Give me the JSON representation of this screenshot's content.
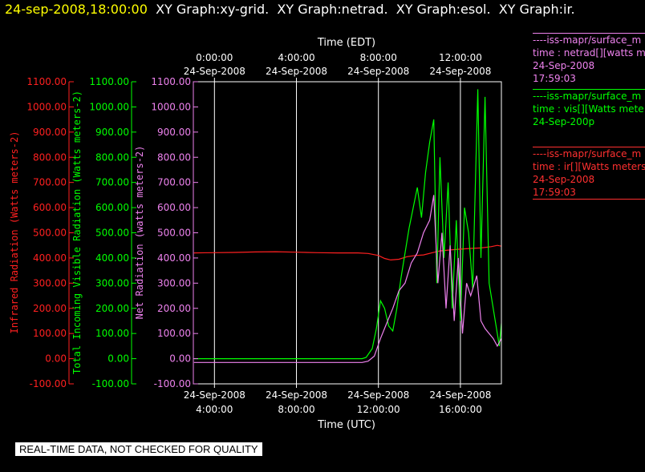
{
  "header": {
    "datetime": "24-sep-2008,18:00:00",
    "graphs": [
      "XY Graph:xy-grid.",
      "XY Graph:netrad.",
      "XY Graph:esol.",
      "XY Graph:ir."
    ]
  },
  "legend": [
    {
      "name": "----iss-mapr/surface_m",
      "line2": "time : netrad[][watts m",
      "line3": "24-Sep-2008",
      "line4": "17:59:03",
      "color": "#ee82ee"
    },
    {
      "name": "----iss-mapr/surface_m",
      "line2": "time : vis[][Watts mete",
      "line3": "24-Sep-200p",
      "line4": "",
      "color": "#00ff00"
    },
    {
      "name": "----iss-mapr/surface_m",
      "line2": "time : ir[][Watts meters",
      "line3": "24-Sep-2008",
      "line4": "17:59:03",
      "color": "#ff3030"
    }
  ],
  "footer": {
    "note": "REAL-TIME DATA, NOT CHECKED FOR QUALITY"
  },
  "chart_data": {
    "type": "line",
    "title": "",
    "top_axis": {
      "label": "Time (EDT)",
      "ticks": [
        {
          "t": 0,
          "line1": "0:00:00",
          "line2": "24-Sep-2008"
        },
        {
          "t": 4,
          "line1": "4:00:00",
          "line2": "24-Sep-2008"
        },
        {
          "t": 8,
          "line1": "8:00:00",
          "line2": "24-Sep-2008"
        },
        {
          "t": 12,
          "line1": "12:00:00",
          "line2": "24-Sep-2008"
        }
      ]
    },
    "bottom_axis": {
      "label": "Time (UTC)",
      "ticks": [
        {
          "t": 4,
          "line1": "24-Sep-2008",
          "line2": "4:00:00"
        },
        {
          "t": 8,
          "line1": "24-Sep-2008",
          "line2": "8:00:00"
        },
        {
          "t": 12,
          "line1": "24-Sep-2008",
          "line2": "12:00:00"
        },
        {
          "t": 16,
          "line1": "24-Sep-2008",
          "line2": "16:00:00"
        }
      ]
    },
    "xlim_utc_hours": [
      2.97,
      18.0
    ],
    "ylim": [
      -100,
      1100
    ],
    "y_ticks": [
      -100,
      0,
      100,
      200,
      300,
      400,
      500,
      600,
      700,
      800,
      900,
      1000,
      1100
    ],
    "y_tick_labels": [
      "-100.00",
      "0.00",
      "100.00",
      "200.00",
      "300.00",
      "400.00",
      "500.00",
      "600.00",
      "700.00",
      "800.00",
      "900.00",
      "1000.00",
      "1100.00"
    ],
    "y_axes": [
      {
        "label": "Infrared Radiation (Watts meters-2)",
        "color": "#ff2020"
      },
      {
        "label": "Total Incoming Visible Radiation (Watts meters-2)",
        "color": "#00ff00"
      },
      {
        "label": "Net Radiation (watts meters-2)",
        "color": "#ee82ee"
      }
    ],
    "grid": {
      "x": [
        4,
        8,
        12,
        16
      ],
      "color": "#ffffff"
    },
    "series": [
      {
        "name": "time : ir[][Watts meters",
        "color": "#ff2020",
        "points": [
          [
            3.0,
            420
          ],
          [
            4.0,
            421
          ],
          [
            5.0,
            422
          ],
          [
            6.0,
            424
          ],
          [
            7.0,
            425
          ],
          [
            8.0,
            423
          ],
          [
            9.0,
            421
          ],
          [
            10.0,
            420
          ],
          [
            11.0,
            420
          ],
          [
            11.5,
            418
          ],
          [
            12.0,
            410
          ],
          [
            12.3,
            398
          ],
          [
            12.6,
            392
          ],
          [
            13.0,
            395
          ],
          [
            13.4,
            405
          ],
          [
            13.8,
            410
          ],
          [
            14.2,
            412
          ],
          [
            14.6,
            420
          ],
          [
            15.0,
            428
          ],
          [
            15.5,
            432
          ],
          [
            16.0,
            435
          ],
          [
            16.5,
            438
          ],
          [
            17.0,
            440
          ],
          [
            17.5,
            445
          ],
          [
            17.8,
            450
          ],
          [
            18.0,
            447
          ]
        ]
      },
      {
        "name": "time : vis[][Watts mete",
        "color": "#00ff00",
        "points": [
          [
            3.0,
            0
          ],
          [
            11.2,
            0
          ],
          [
            11.4,
            5
          ],
          [
            11.7,
            40
          ],
          [
            11.9,
            120
          ],
          [
            12.1,
            230
          ],
          [
            12.3,
            200
          ],
          [
            12.5,
            130
          ],
          [
            12.7,
            110
          ],
          [
            12.9,
            200
          ],
          [
            13.1,
            320
          ],
          [
            13.3,
            420
          ],
          [
            13.5,
            520
          ],
          [
            13.7,
            600
          ],
          [
            13.9,
            680
          ],
          [
            14.1,
            560
          ],
          [
            14.3,
            740
          ],
          [
            14.5,
            860
          ],
          [
            14.7,
            950
          ],
          [
            14.85,
            300
          ],
          [
            15.0,
            800
          ],
          [
            15.2,
            400
          ],
          [
            15.4,
            700
          ],
          [
            15.6,
            200
          ],
          [
            15.8,
            550
          ],
          [
            16.0,
            150
          ],
          [
            16.2,
            600
          ],
          [
            16.4,
            500
          ],
          [
            16.6,
            280
          ],
          [
            16.85,
            1070
          ],
          [
            17.0,
            400
          ],
          [
            17.2,
            1040
          ],
          [
            17.4,
            300
          ],
          [
            17.6,
            200
          ],
          [
            17.8,
            100
          ],
          [
            17.9,
            50
          ],
          [
            18.0,
            140
          ]
        ]
      },
      {
        "name": "time : netrad[][watts m",
        "color": "#ee82ee",
        "points": [
          [
            3.0,
            -15
          ],
          [
            11.2,
            -15
          ],
          [
            11.5,
            -10
          ],
          [
            11.8,
            10
          ],
          [
            12.1,
            80
          ],
          [
            12.4,
            140
          ],
          [
            12.7,
            200
          ],
          [
            13.0,
            270
          ],
          [
            13.3,
            300
          ],
          [
            13.6,
            380
          ],
          [
            13.9,
            420
          ],
          [
            14.2,
            500
          ],
          [
            14.5,
            550
          ],
          [
            14.7,
            650
          ],
          [
            14.9,
            300
          ],
          [
            15.1,
            500
          ],
          [
            15.3,
            200
          ],
          [
            15.5,
            450
          ],
          [
            15.7,
            150
          ],
          [
            15.9,
            400
          ],
          [
            16.1,
            100
          ],
          [
            16.3,
            300
          ],
          [
            16.5,
            250
          ],
          [
            16.8,
            330
          ],
          [
            17.0,
            150
          ],
          [
            17.2,
            120
          ],
          [
            17.4,
            100
          ],
          [
            17.6,
            80
          ],
          [
            17.8,
            50
          ],
          [
            18.0,
            80
          ]
        ]
      }
    ]
  }
}
